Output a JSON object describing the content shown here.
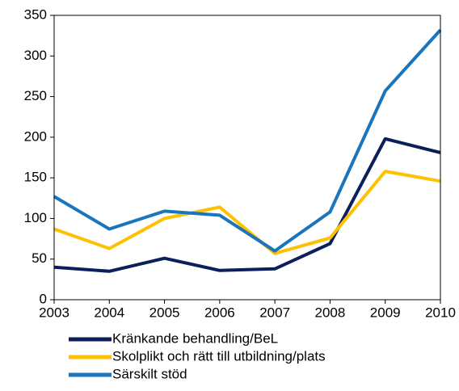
{
  "chart_data": {
    "type": "line",
    "x": [
      2003,
      2004,
      2005,
      2006,
      2007,
      2008,
      2009,
      2010
    ],
    "series": [
      {
        "name": "Kränkande behandling/BeL",
        "color": "#0b1f5c",
        "values": [
          40,
          35,
          51,
          36,
          38,
          69,
          198,
          181
        ]
      },
      {
        "name": "Skolplikt och rätt till utbildning/plats",
        "color": "#ffc000",
        "values": [
          87,
          63,
          100,
          114,
          57,
          76,
          158,
          146
        ]
      },
      {
        "name": "Särskilt stöd",
        "color": "#1a75bc",
        "values": [
          127,
          87,
          109,
          104,
          60,
          108,
          257,
          332
        ]
      }
    ],
    "xlim": [
      2003,
      2010
    ],
    "xticks": [
      2003,
      2004,
      2005,
      2006,
      2007,
      2008,
      2009,
      2010
    ],
    "ylim": [
      0,
      350
    ],
    "yticks": [
      0,
      50,
      100,
      150,
      200,
      250,
      300,
      350
    ],
    "legend": "bottom"
  }
}
